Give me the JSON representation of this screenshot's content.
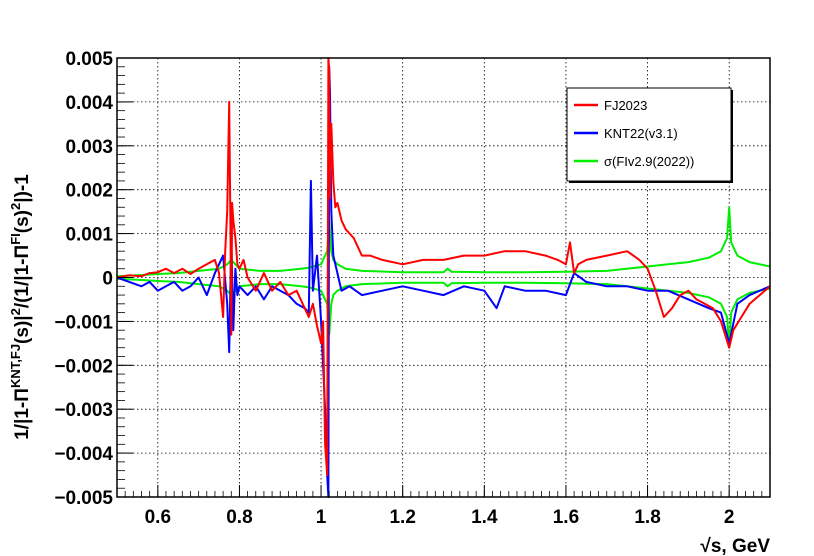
{
  "chart_data": {
    "type": "line",
    "title": "",
    "xlabel": "√s, GeV",
    "ylabel": "1/|1-Π^KNT,FJ(s)|²/(1/|1-Π^FI(s)²|)-1",
    "ylabel_parts": {
      "a": "1/|1-Π",
      "a_sup": "KNT,FJ",
      "b": "(s)|",
      "b_sup": "2",
      "c": "/(1/|1-Π",
      "c_sup": "FI",
      "d": "(s)",
      "d_sup": "2",
      "e": "|)-1"
    },
    "xlim": [
      0.5,
      2.1
    ],
    "ylim": [
      -0.005,
      0.005
    ],
    "x_ticks": [
      0.6,
      0.8,
      1.0,
      1.2,
      1.4,
      1.6,
      1.8,
      2.0
    ],
    "x_tick_labels": [
      "0.6",
      "0.8",
      "1",
      "1.2",
      "1.4",
      "1.6",
      "1.8",
      "2"
    ],
    "y_ticks": [
      -0.005,
      -0.004,
      -0.003,
      -0.002,
      -0.001,
      0,
      0.001,
      0.002,
      0.003,
      0.004,
      0.005
    ],
    "y_tick_labels": [
      "−0.005",
      "−0.004",
      "−0.003",
      "−0.002",
      "−0.001",
      "0",
      "0.001",
      "0.002",
      "0.003",
      "0.004",
      "0.005"
    ],
    "grid": true,
    "legend_position": "top-right",
    "series": [
      {
        "name": "FJ2023",
        "color": "#ff0000",
        "x": [
          0.5,
          0.53,
          0.56,
          0.58,
          0.6,
          0.62,
          0.64,
          0.66,
          0.68,
          0.7,
          0.72,
          0.74,
          0.75,
          0.76,
          0.765,
          0.77,
          0.775,
          0.778,
          0.78,
          0.782,
          0.785,
          0.79,
          0.795,
          0.8,
          0.81,
          0.82,
          0.84,
          0.86,
          0.88,
          0.9,
          0.92,
          0.94,
          0.96,
          0.97,
          0.98,
          0.99,
          1.0,
          1.005,
          1.01,
          1.015,
          1.018,
          1.02,
          1.022,
          1.025,
          1.03,
          1.035,
          1.04,
          1.05,
          1.06,
          1.08,
          1.1,
          1.12,
          1.15,
          1.2,
          1.25,
          1.3,
          1.35,
          1.4,
          1.45,
          1.5,
          1.55,
          1.58,
          1.6,
          1.61,
          1.62,
          1.63,
          1.65,
          1.7,
          1.75,
          1.78,
          1.8,
          1.82,
          1.84,
          1.86,
          1.88,
          1.9,
          1.92,
          1.94,
          1.96,
          1.98,
          1.99,
          2.0,
          2.01,
          2.03,
          2.05,
          2.1
        ],
        "y": [
          0.0,
          5e-05,
          3e-05,
          0.0001,
          0.00012,
          0.0002,
          0.0001,
          0.0002,
          8e-05,
          0.0002,
          0.0003,
          0.0004,
          0.0001,
          -0.0009,
          0.0006,
          0.0015,
          0.004,
          0.001,
          -0.0013,
          0.0017,
          0.0013,
          0.0009,
          0.0003,
          0.0002,
          0.0004,
          0.0,
          -0.0003,
          0.0001,
          -0.0003,
          -0.0001,
          -0.0004,
          -0.0003,
          -0.0007,
          -0.0009,
          -0.0006,
          -0.0011,
          -0.0015,
          -0.001,
          -0.0038,
          -0.0045,
          0.005,
          0.0047,
          0.0018,
          0.0035,
          0.0022,
          0.0016,
          0.0017,
          0.0013,
          0.0011,
          0.0009,
          0.0005,
          0.0005,
          0.0004,
          0.0003,
          0.0004,
          0.0004,
          0.0005,
          0.0005,
          0.0006,
          0.0006,
          0.0005,
          0.0004,
          0.0003,
          0.0008,
          0.0001,
          0.0003,
          0.0004,
          0.0005,
          0.0006,
          0.0004,
          0.0002,
          -0.0003,
          -0.0009,
          -0.0007,
          -0.0004,
          -0.0003,
          -0.0005,
          -0.0006,
          -0.0007,
          -0.001,
          -0.0013,
          -0.0016,
          -0.0012,
          -0.0009,
          -0.0006,
          -0.0002
        ]
      },
      {
        "name": "KNT22(v3.1)",
        "color": "#0000ff",
        "x": [
          0.5,
          0.53,
          0.56,
          0.58,
          0.6,
          0.62,
          0.64,
          0.66,
          0.68,
          0.7,
          0.72,
          0.74,
          0.76,
          0.77,
          0.775,
          0.78,
          0.785,
          0.79,
          0.795,
          0.8,
          0.82,
          0.84,
          0.86,
          0.88,
          0.9,
          0.92,
          0.94,
          0.96,
          0.97,
          0.975,
          0.98,
          0.99,
          1.0,
          1.01,
          1.015,
          1.018,
          1.02,
          1.022,
          1.025,
          1.03,
          1.04,
          1.05,
          1.07,
          1.1,
          1.15,
          1.2,
          1.25,
          1.3,
          1.35,
          1.4,
          1.43,
          1.45,
          1.5,
          1.55,
          1.6,
          1.62,
          1.65,
          1.7,
          1.75,
          1.8,
          1.85,
          1.9,
          1.95,
          1.98,
          2.0,
          2.02,
          2.05,
          2.1
        ],
        "y": [
          0.0,
          -0.0001,
          -0.0002,
          -0.0001,
          -0.0003,
          -0.0002,
          -0.0001,
          -0.0003,
          -0.0002,
          0.0,
          -0.0004,
          0.0001,
          0.0005,
          -0.0006,
          -0.0017,
          0.0009,
          -0.0012,
          0.0002,
          -0.0004,
          -0.0002,
          -0.0004,
          -0.0002,
          -0.0005,
          -0.0002,
          -0.0003,
          -0.0004,
          -0.0006,
          -0.0007,
          -0.0008,
          0.0022,
          -0.0003,
          0.0005,
          -0.001,
          -0.003,
          -0.0045,
          -0.005,
          0.0048,
          0.0042,
          0.0015,
          0.0005,
          0.0001,
          -0.0003,
          -0.0002,
          -0.0004,
          -0.0003,
          -0.0002,
          -0.0003,
          -0.0004,
          -0.0002,
          -0.0003,
          -0.0007,
          -0.0002,
          -0.0003,
          -0.0003,
          -0.0004,
          0.0001,
          -0.0001,
          -0.0002,
          -0.0002,
          -0.0003,
          -0.0003,
          -0.0005,
          -0.0007,
          -0.0008,
          -0.0015,
          -0.0006,
          -0.0004,
          -0.0002
        ]
      },
      {
        "name": "σ(FIv2.9(2022))",
        "color": "#00ee00",
        "mirrored": true,
        "x": [
          0.5,
          0.55,
          0.6,
          0.65,
          0.7,
          0.75,
          0.77,
          0.78,
          0.79,
          0.8,
          0.85,
          0.9,
          0.95,
          0.97,
          0.98,
          1.0,
          1.01,
          1.015,
          1.02,
          1.025,
          1.03,
          1.04,
          1.06,
          1.1,
          1.2,
          1.3,
          1.31,
          1.32,
          1.4,
          1.5,
          1.6,
          1.7,
          1.8,
          1.85,
          1.9,
          1.95,
          1.98,
          1.995,
          2.0,
          2.005,
          2.02,
          2.05,
          2.1
        ],
        "y": [
          3e-05,
          5e-05,
          8e-05,
          0.0001,
          0.00015,
          0.0002,
          0.0003,
          0.0004,
          0.0003,
          0.0002,
          0.00015,
          0.00015,
          0.0002,
          0.00022,
          0.00025,
          0.0003,
          0.0005,
          0.0006,
          0.0013,
          0.0006,
          0.0004,
          0.0003,
          0.0002,
          0.00015,
          0.00012,
          0.00012,
          0.0002,
          0.00013,
          0.00012,
          0.00012,
          0.00013,
          0.00015,
          0.00025,
          0.0003,
          0.00035,
          0.00045,
          0.0006,
          0.0009,
          0.0016,
          0.0008,
          0.0005,
          0.00035,
          0.00025
        ]
      }
    ]
  }
}
